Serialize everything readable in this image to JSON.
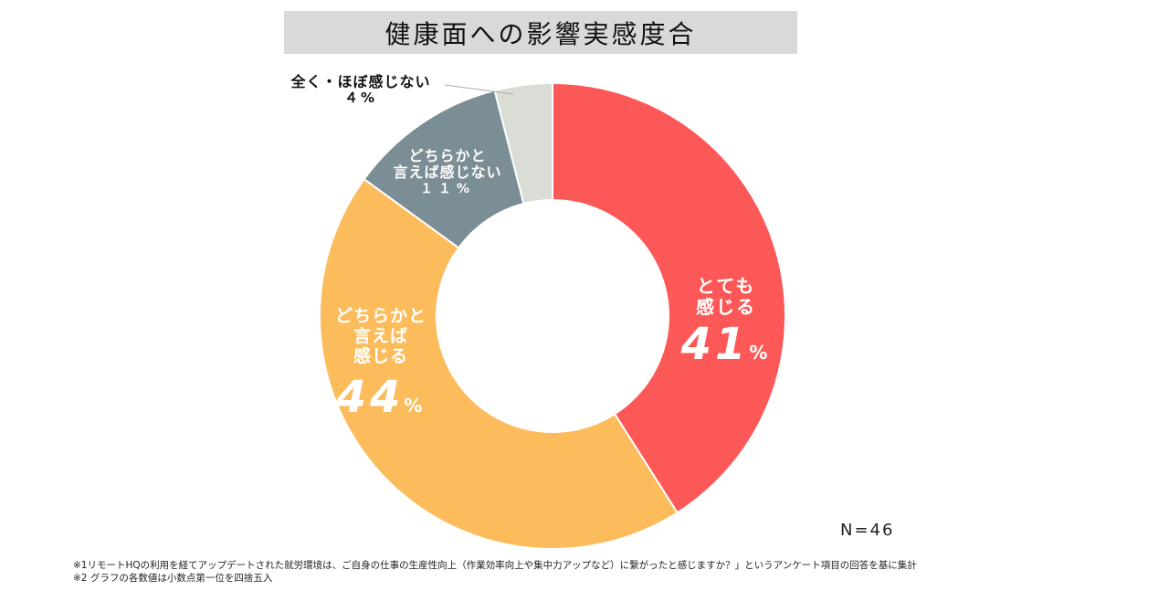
{
  "title": "健康面への影響実感度合",
  "chart_data": {
    "type": "pie",
    "variant": "donut",
    "title": "健康面への影響実感度合",
    "start": "12 o'clock, clockwise",
    "slices": [
      {
        "label_lines": [
          "とても",
          "感じる"
        ],
        "value": 41,
        "display": "41",
        "unit": "%",
        "color": "#fd5858"
      },
      {
        "label_lines": [
          "どちらかと",
          "言えば",
          "感じる"
        ],
        "value": 44,
        "display": "44",
        "unit": "%",
        "color": "#fcbc5b"
      },
      {
        "label_lines": [
          "どちらかと",
          "言えば感じない"
        ],
        "value": 11,
        "display": "１１",
        "unit": "%",
        "color": "#7b8d95"
      },
      {
        "label_lines": [
          "全く・ほぼ感じない"
        ],
        "value": 4,
        "display": "４",
        "unit": "%",
        "color": "#d9ddd5"
      }
    ]
  },
  "n_label": "N=46",
  "notes": [
    "※1リモートHQの利用を経てアップデートされた就労環境は、ご自身の仕事の生産性向上（作業効率向上や集中力アップなど）に繋がったと感じますか？」というアンケート項目の回答を基に集計",
    "※2 グラフの各数値は小数点第一位を四捨五入"
  ]
}
